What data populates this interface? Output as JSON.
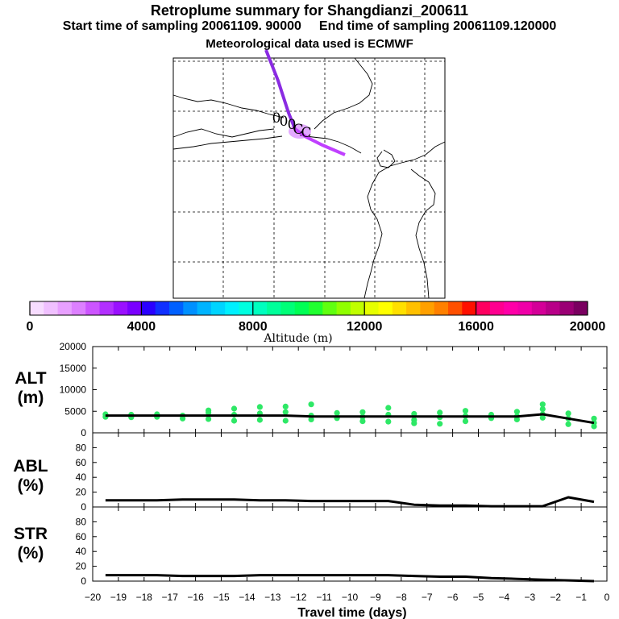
{
  "header": {
    "title": "Retroplume summary for Shangdianzi_200611",
    "start_label": "Start time of sampling 20061109. 90000",
    "end_label": "End time of sampling 20061109.120000",
    "met_label": "Meteorological data used is ECMWF"
  },
  "map": {
    "plume_labels": [
      "0",
      "0",
      "0",
      "C",
      "C"
    ],
    "plume_color": "#8a2be2",
    "plume_color_light": "#c040ff"
  },
  "colorbar": {
    "axis_title": "Altitude (m)",
    "range": [
      0,
      20000
    ],
    "tick_labels": [
      "0",
      "4000",
      "8000",
      "12000",
      "16000",
      "20000"
    ],
    "colors": [
      "#f7dcff",
      "#f0c0ff",
      "#e8a0ff",
      "#dd80ff",
      "#cc55ff",
      "#b230ff",
      "#9a10ff",
      "#7a00ff",
      "#2a00ff",
      "#1030ff",
      "#0060ff",
      "#0090ff",
      "#00b4ff",
      "#00d4ff",
      "#00f0ff",
      "#00ffe0",
      "#00ffbf",
      "#00ff9a",
      "#00ff78",
      "#00ff55",
      "#20ff30",
      "#60ff10",
      "#90ff00",
      "#c0ff00",
      "#e6ff00",
      "#ffff00",
      "#ffe000",
      "#ffc000",
      "#ffa000",
      "#ff8000",
      "#ff5000",
      "#ff1000",
      "#ff0060",
      "#ff0090",
      "#ff00a8",
      "#f000a8",
      "#d40098",
      "#b80088",
      "#9a0074",
      "#7a0060"
    ]
  },
  "chart_data": [
    {
      "type": "line",
      "title": "ALT",
      "ylabel": "ALT (m)",
      "ylabel_lines": [
        "ALT",
        "(m)"
      ],
      "ylim": [
        0,
        20000
      ],
      "yticks": [
        "0",
        "5000",
        "10000",
        "15000",
        "20000"
      ],
      "x": [
        -19.5,
        -18.5,
        -17.5,
        -16.5,
        -15.5,
        -14.5,
        -13.5,
        -12.5,
        -11.5,
        -10.5,
        -9.5,
        -8.5,
        -7.5,
        -6.5,
        -5.5,
        -4.5,
        -3.5,
        -2.5,
        -1.5,
        -0.5
      ],
      "mean_altitude": [
        4000,
        4000,
        4000,
        4000,
        4000,
        4000,
        4000,
        4000,
        3800,
        3800,
        3800,
        3800,
        3800,
        3800,
        3800,
        3800,
        3800,
        4300,
        3300,
        2300
      ],
      "scatter_color": "#2ee866",
      "scatter_points": [
        [
          -19.5,
          4300
        ],
        [
          -19.5,
          3700
        ],
        [
          -18.5,
          4200
        ],
        [
          -18.5,
          3600
        ],
        [
          -17.5,
          4300
        ],
        [
          -17.5,
          3700
        ],
        [
          -16.5,
          4000
        ],
        [
          -16.5,
          3300
        ],
        [
          -15.5,
          4700
        ],
        [
          -15.5,
          3200
        ],
        [
          -15.5,
          5200
        ],
        [
          -14.5,
          5600
        ],
        [
          -14.5,
          4200
        ],
        [
          -14.5,
          2800
        ],
        [
          -13.5,
          6000
        ],
        [
          -13.5,
          4500
        ],
        [
          -13.5,
          3000
        ],
        [
          -12.5,
          6100
        ],
        [
          -12.5,
          4800
        ],
        [
          -12.5,
          2800
        ],
        [
          -11.5,
          6600
        ],
        [
          -11.5,
          4000
        ],
        [
          -11.5,
          3100
        ],
        [
          -10.5,
          4600
        ],
        [
          -10.5,
          3400
        ],
        [
          -9.5,
          4800
        ],
        [
          -9.5,
          3700
        ],
        [
          -9.5,
          2700
        ],
        [
          -8.5,
          5800
        ],
        [
          -8.5,
          4200
        ],
        [
          -8.5,
          2600
        ],
        [
          -7.5,
          4400
        ],
        [
          -7.5,
          3000
        ],
        [
          -7.5,
          2200
        ],
        [
          -6.5,
          4700
        ],
        [
          -6.5,
          3600
        ],
        [
          -6.5,
          2100
        ],
        [
          -5.5,
          5100
        ],
        [
          -5.5,
          3900
        ],
        [
          -5.5,
          2700
        ],
        [
          -4.5,
          4200
        ],
        [
          -4.5,
          3400
        ],
        [
          -3.5,
          4900
        ],
        [
          -3.5,
          3800
        ],
        [
          -3.5,
          3100
        ],
        [
          -2.5,
          6600
        ],
        [
          -2.5,
          5500
        ],
        [
          -2.5,
          4300
        ],
        [
          -2.5,
          3500
        ],
        [
          -1.5,
          4500
        ],
        [
          -1.5,
          3300
        ],
        [
          -1.5,
          2000
        ],
        [
          -0.5,
          3300
        ],
        [
          -0.5,
          2300
        ],
        [
          -0.5,
          1500
        ]
      ]
    },
    {
      "type": "line",
      "title": "ABL",
      "ylabel": "ABL (%)",
      "ylabel_lines": [
        "ABL",
        "(%)"
      ],
      "ylim": [
        0,
        100
      ],
      "yticks": [
        "0",
        "20",
        "40",
        "60",
        "80"
      ],
      "x": [
        -19.5,
        -18.5,
        -17.5,
        -16.5,
        -15.5,
        -14.5,
        -13.5,
        -12.5,
        -11.5,
        -10.5,
        -9.5,
        -8.5,
        -7.5,
        -6.5,
        -5.5,
        -4.5,
        -3.5,
        -2.5,
        -1.5,
        -0.5
      ],
      "values": [
        9,
        9,
        9,
        10,
        10,
        10,
        9,
        9,
        8,
        8,
        8,
        8,
        3,
        2,
        2,
        1,
        1,
        1,
        13,
        7
      ]
    },
    {
      "type": "line",
      "title": "STR",
      "ylabel": "STR (%)",
      "ylabel_lines": [
        "STR",
        "(%)"
      ],
      "ylim": [
        0,
        100
      ],
      "yticks": [
        "0",
        "20",
        "40",
        "60",
        "80"
      ],
      "x": [
        -19.5,
        -18.5,
        -17.5,
        -16.5,
        -15.5,
        -14.5,
        -13.5,
        -12.5,
        -11.5,
        -10.5,
        -9.5,
        -8.5,
        -7.5,
        -6.5,
        -5.5,
        -4.5,
        -3.5,
        -2.5,
        -1.5,
        -0.5
      ],
      "values": [
        8,
        8,
        8,
        7,
        7,
        7,
        8,
        8,
        8,
        8,
        8,
        8,
        7,
        6,
        6,
        4,
        3,
        2,
        1,
        0
      ],
      "xlabel": "Travel time (days)",
      "xlim": [
        -20,
        0
      ],
      "xticks": [
        "−20",
        "−19",
        "−18",
        "−17",
        "−16",
        "−15",
        "−14",
        "−13",
        "−12",
        "−11",
        "−10",
        "−9",
        "−8",
        "−7",
        "−6",
        "−5",
        "−4",
        "−3",
        "−2",
        "−1",
        "0"
      ]
    }
  ]
}
